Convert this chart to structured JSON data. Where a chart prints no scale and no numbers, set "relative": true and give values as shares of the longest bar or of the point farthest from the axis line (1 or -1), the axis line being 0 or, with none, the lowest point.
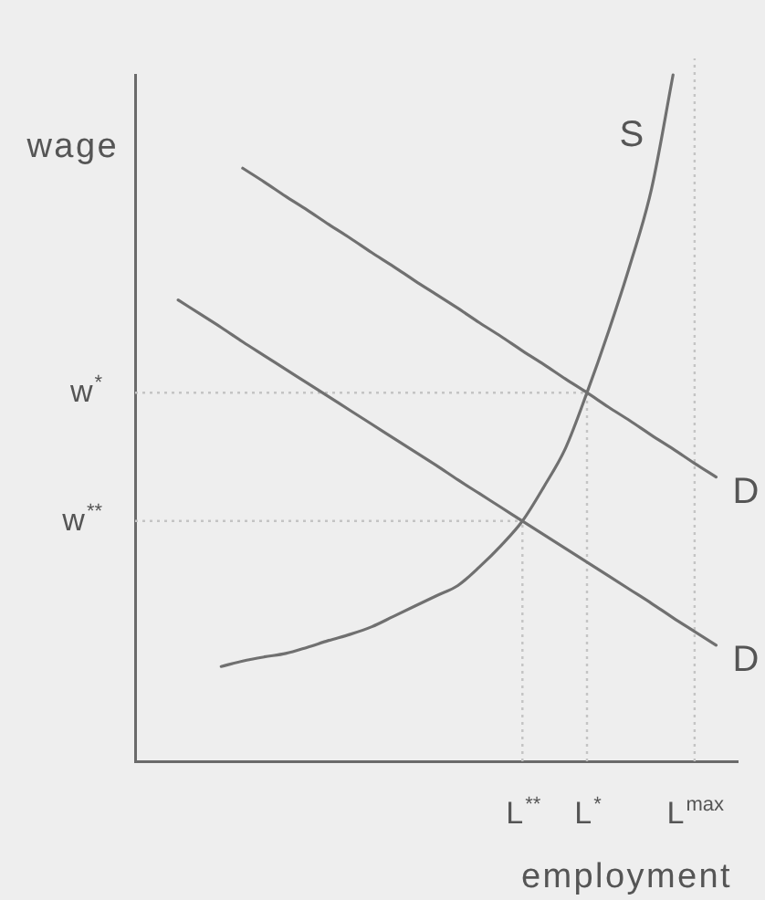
{
  "chart_data": {
    "type": "line",
    "xlabel": "employment",
    "ylabel": "wage",
    "relative": true,
    "legend": false,
    "grid": false,
    "marker": "none",
    "line_style": "solid",
    "tick_labels": "x",
    "categories": [
      null,
      null,
      null,
      null,
      null,
      null,
      null,
      null,
      null,
      null,
      null,
      null,
      null,
      null,
      null,
      null,
      null,
      null,
      "L$^{**}$",
      null,
      null,
      "L$^{*}$",
      null,
      null,
      null,
      null,
      "L$^{max}$",
      null,
      null
    ],
    "series": [
      {
        "name": "S",
        "color": "#707070",
        "values": [
          null,
          null,
          null,
          null,
          0.138,
          0.146,
          0.152,
          0.157,
          0.166,
          0.176,
          0.185,
          0.196,
          0.211,
          0.226,
          0.241,
          0.256,
          0.283,
          0.314,
          0.35,
          0.4,
          0.456,
          0.537,
          0.626,
          0.723,
          0.834,
          1,
          null,
          null,
          null
        ]
      },
      {
        "name": "D",
        "color": "#707070",
        "values": [
          null,
          null,
          null,
          null,
          null,
          0.864,
          0.844,
          0.823,
          0.803,
          0.782,
          0.762,
          0.741,
          0.721,
          0.7,
          0.68,
          0.66,
          0.639,
          0.619,
          0.598,
          0.578,
          0.557,
          0.537,
          0.516,
          0.496,
          0.475,
          0.455,
          0.434,
          0.414,
          null
        ]
      },
      {
        "name": "D",
        "color": "#707070",
        "values": [
          null,
          null,
          0.672,
          0.652,
          0.632,
          0.611,
          0.591,
          0.571,
          0.551,
          0.531,
          0.511,
          0.491,
          0.471,
          0.451,
          0.431,
          0.41,
          0.39,
          0.37,
          0.35,
          0.33,
          0.31,
          0.29,
          0.27,
          0.25,
          0.23,
          0.209,
          0.189,
          0.169,
          null
        ]
      }
    ],
    "ref_lines": [
      {
        "axis": "y",
        "value": 0.537,
        "label": "w$^{*}$",
        "color": "#c4c4c4",
        "line_style": "dotted"
      },
      {
        "axis": "y",
        "value": 0.35,
        "label": "w$^{**}$",
        "color": "#c4c4c4",
        "line_style": "dotted"
      },
      {
        "axis": "x",
        "value": "L$^{**}$",
        "color": "#c4c4c4",
        "line_style": "dotted"
      },
      {
        "axis": "x",
        "value": "L$^{*}$",
        "color": "#c4c4c4",
        "line_style": "dotted"
      },
      {
        "axis": "x",
        "value": "L$^{max}$",
        "color": "#c4c4c4",
        "line_style": "dotted"
      }
    ]
  }
}
